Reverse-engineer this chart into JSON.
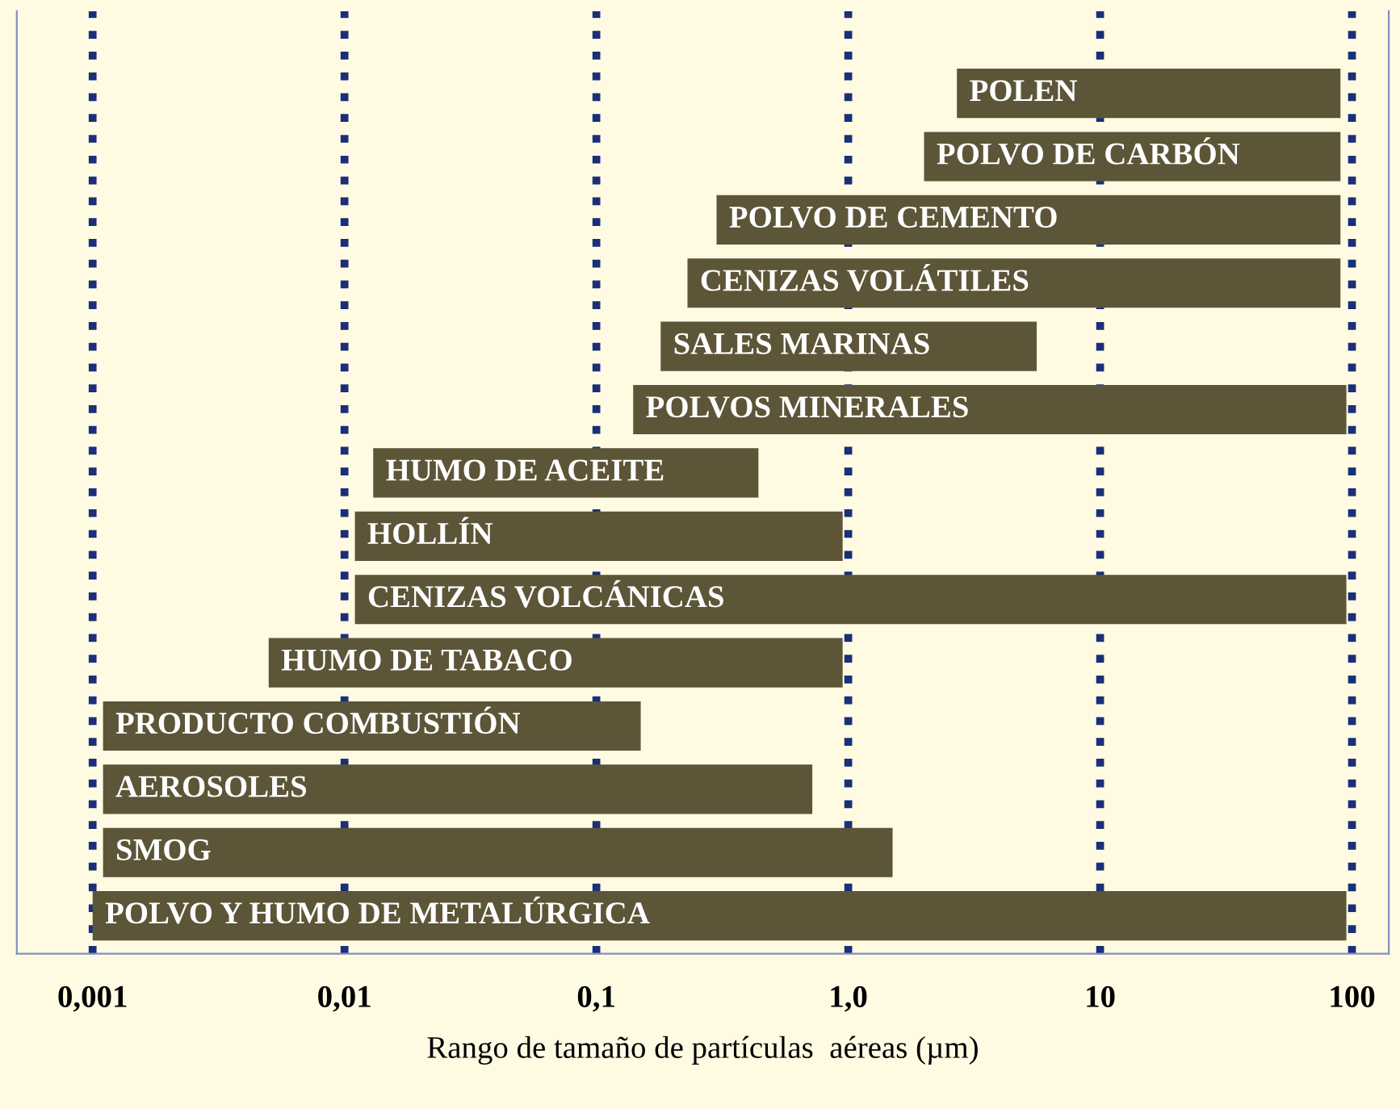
{
  "chart_data": {
    "type": "bar",
    "orientation": "horizontal",
    "xlabel": "Rango de tamaño de partículas  aéreas (µm)",
    "categories": [
      "POLEN",
      "POLVO DE CARBÓN",
      "POLVO DE CEMENTO",
      "CENIZAS VOLÁTILES",
      "SALES MARINAS",
      "POLVOS MINERALES",
      "HUMO DE ACEITE",
      "HOLLÍN",
      "CENIZAS VOLCÁNICAS",
      "HUMO DE TABACO",
      "PRODUCTO COMBUSTIÓN",
      "AEROSOLES",
      "SMOG",
      "POLVO Y HUMO DE METALÚRGICA"
    ],
    "base": [
      2.7,
      2,
      0.3,
      0.23,
      0.18,
      0.14,
      0.013,
      0.011,
      0.011,
      0.005,
      0.0011,
      0.0011,
      0.0011,
      0.001
    ],
    "values": [
      87.3,
      88,
      89.7,
      89.77,
      5.42,
      94.86,
      0.427,
      0.939,
      94.989,
      0.945,
      0.1489,
      0.7189,
      1.4989,
      94.999
    ],
    "color": "#5c5538",
    "log": "x",
    "xlim": [
      0.0005,
      140
    ],
    "xticks": [
      {
        "value": 0.001,
        "label": "0,001"
      },
      {
        "value": 0.01,
        "label": "0,01"
      },
      {
        "value": 0.1,
        "label": "0,1"
      },
      {
        "value": 1,
        "label": "1,0"
      },
      {
        "value": 10,
        "label": "10"
      },
      {
        "value": 100,
        "label": "100"
      }
    ],
    "grid": "x",
    "line_style": "dotted",
    "tick_labels": "x"
  }
}
